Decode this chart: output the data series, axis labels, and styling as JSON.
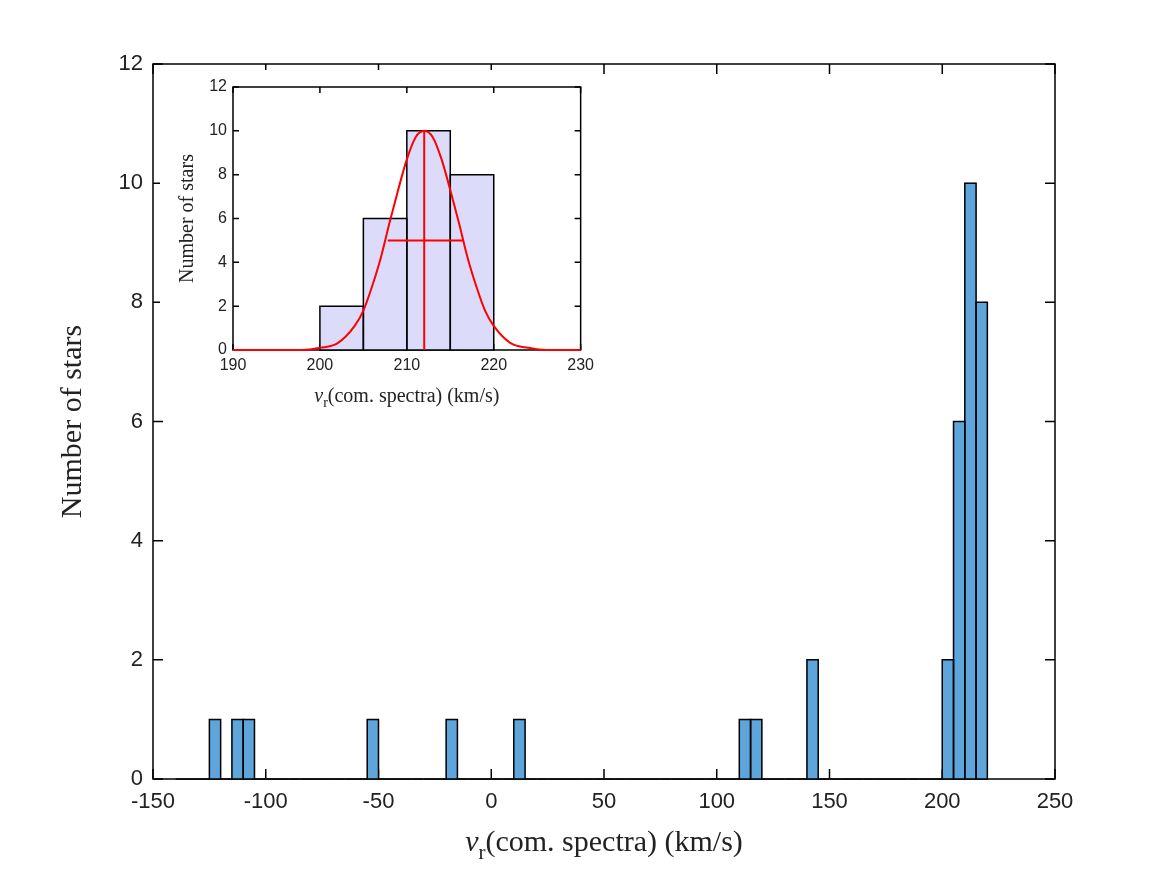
{
  "chart_data": [
    {
      "type": "histogram",
      "xlabel": "v$_{r}$(com. spectra) (km/s)",
      "ylabel": "Number of stars",
      "bins": [
        -140,
        -135,
        -130,
        -125,
        -120,
        -115,
        -110,
        -105,
        -100,
        -95,
        -90,
        -85,
        -80,
        -75,
        -70,
        -65,
        -60,
        -55,
        -50,
        -45,
        -40,
        -35,
        -30,
        -25,
        -20,
        -15,
        -10,
        -5,
        0,
        5,
        10,
        15,
        20,
        25,
        30,
        35,
        40,
        45,
        50,
        55,
        60,
        65,
        70,
        75,
        80,
        85,
        90,
        95,
        100,
        105,
        110,
        115,
        120,
        125,
        130,
        135,
        140,
        145,
        150,
        155,
        160,
        165,
        170,
        175,
        180,
        185,
        190,
        195,
        200,
        205,
        210,
        215,
        220
      ],
      "values": [
        0,
        0,
        0,
        1,
        0,
        1,
        1,
        0,
        0,
        0,
        0,
        0,
        0,
        0,
        0,
        0,
        0,
        1,
        0,
        0,
        0,
        0,
        0,
        0,
        1,
        0,
        0,
        0,
        0,
        0,
        1,
        0,
        0,
        0,
        0,
        0,
        0,
        0,
        0,
        0,
        0,
        0,
        0,
        0,
        0,
        0,
        0,
        0,
        0,
        0,
        1,
        1,
        0,
        0,
        0,
        0,
        2,
        0,
        0,
        0,
        0,
        0,
        0,
        0,
        0,
        0,
        0,
        0,
        2,
        6,
        10,
        8
      ],
      "color": "#5da5da",
      "xlim": [
        -150,
        250
      ],
      "xticks": [
        -150,
        -100,
        -50,
        0,
        50,
        100,
        150,
        200,
        250
      ],
      "ylim": [
        0,
        12
      ],
      "yticks": [
        0,
        2,
        4,
        6,
        8,
        10,
        12
      ]
    },
    {
      "type": "histogram",
      "xlabel": "v$_{r}$(com. spectra) (km/s)",
      "ylabel": "Number of stars",
      "bins": [
        200,
        205,
        210,
        215,
        220
      ],
      "series": [
        {
          "values": [
            2,
            6,
            10,
            8
          ],
          "color": "#dcdcfa"
        },
        {
          "type": "line",
          "color": "#ff0000",
          "x": [
            190,
            196,
            198,
            200,
            202,
            204,
            205,
            206,
            207,
            208,
            209,
            210,
            211,
            212,
            213,
            214,
            215,
            216,
            217,
            218,
            219,
            220,
            222,
            224,
            226,
            230
          ],
          "values": [
            0,
            0,
            0,
            0.1,
            0.3,
            1.1,
            1.8,
            2.9,
            4.2,
            5.8,
            7.3,
            8.7,
            9.7,
            10,
            9.7,
            8.7,
            7.3,
            5.8,
            4.2,
            2.9,
            1.8,
            1.1,
            0.3,
            0.1,
            0,
            0
          ]
        },
        {
          "type": "line",
          "color": "#ff0000",
          "x": [
            212,
            212
          ],
          "values": [
            0,
            10
          ]
        },
        {
          "type": "line",
          "color": "#ff0000",
          "x": [
            207.8,
            216.5
          ],
          "values": [
            5,
            5
          ]
        }
      ],
      "xlim": [
        190,
        230
      ],
      "xticks": [
        190,
        200,
        210,
        220,
        230
      ],
      "ylim": [
        0,
        12
      ],
      "yticks": [
        0,
        2,
        4,
        6,
        8,
        10,
        12
      ]
    }
  ]
}
